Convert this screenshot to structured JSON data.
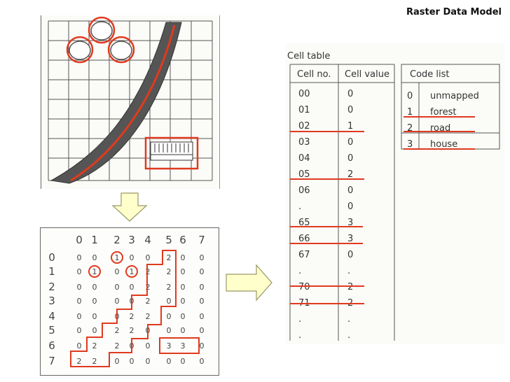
{
  "title": "Raster Data Model",
  "colors": {
    "accent": "#e03a1e",
    "arrow_fill": "#ffffcc",
    "arrow_stroke": "#999966",
    "road": "#555555"
  },
  "grid": {
    "col_headers": [
      "0",
      "1",
      "2",
      "3",
      "4",
      "5",
      "6",
      "7"
    ],
    "row_headers": [
      "0",
      "1",
      "2",
      "3",
      "4",
      "5",
      "6",
      "7"
    ],
    "rows": [
      [
        "0",
        "0",
        "1",
        "0",
        "0",
        "2",
        "0",
        "0"
      ],
      [
        "0",
        "1",
        "0",
        "1",
        "2",
        "2",
        "0",
        "0"
      ],
      [
        "0",
        "0",
        "0",
        "0",
        "2",
        "2",
        "0",
        "0"
      ],
      [
        "0",
        "0",
        "0",
        "0",
        "2",
        "0",
        "0",
        "0"
      ],
      [
        "0",
        "0",
        "0",
        "2",
        "2",
        "0",
        "0",
        "0"
      ],
      [
        "0",
        "0",
        "2",
        "2",
        "0",
        "0",
        "0",
        "0"
      ],
      [
        "0",
        "2",
        "2",
        "0",
        "0",
        "3",
        "3",
        "0"
      ],
      [
        "2",
        "2",
        "0",
        "0",
        "0",
        "0",
        "0",
        "0"
      ]
    ]
  },
  "cell_table": {
    "caption": "Cell table",
    "headers": [
      "Cell no.",
      "Cell value"
    ],
    "rows": [
      [
        "00",
        "0"
      ],
      [
        "01",
        "0"
      ],
      [
        "02",
        "1"
      ],
      [
        "03",
        "0"
      ],
      [
        "04",
        "0"
      ],
      [
        "05",
        "2"
      ],
      [
        "06",
        "0"
      ],
      [
        ".",
        "0"
      ],
      [
        "65",
        "3"
      ],
      [
        "66",
        "3"
      ],
      [
        "67",
        "0"
      ],
      [
        ".",
        "."
      ],
      [
        "70",
        "2"
      ],
      [
        "71",
        "2"
      ],
      [
        ".",
        "."
      ],
      [
        ".",
        "."
      ]
    ]
  },
  "code_list": {
    "header": "Code list",
    "rows": [
      [
        "0",
        "unmapped"
      ],
      [
        "1",
        "forest"
      ],
      [
        "2",
        "road"
      ],
      [
        "3",
        "house"
      ]
    ]
  }
}
